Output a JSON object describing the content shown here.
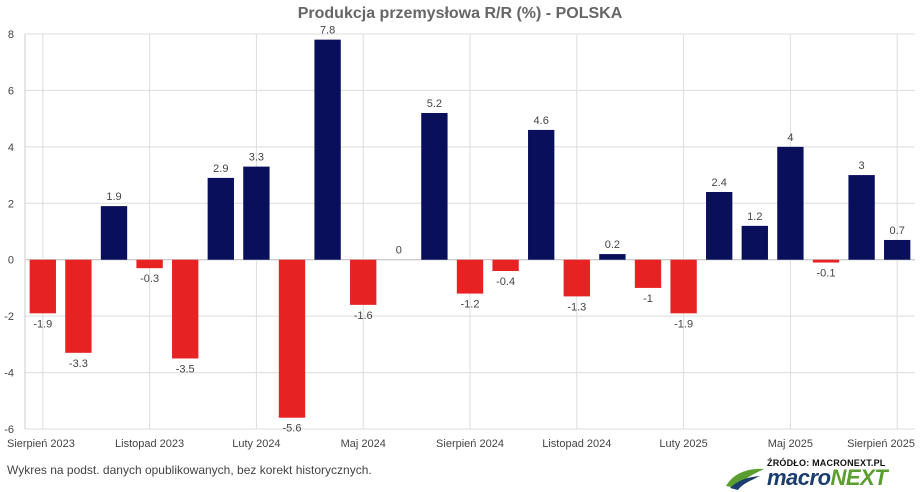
{
  "title": "Produkcja przemysłowa R/R (%) - POLSKA",
  "footnote": "Wykres na podst. danych opublikowanych, bez korekt historycznych.",
  "source": "ŹRÓDŁO: MACRONEXT.PL",
  "brand": {
    "part1": "macro",
    "part2": "NEXT"
  },
  "colors": {
    "positive": "#0a0f5c",
    "negative": "#e62222",
    "grid": "#dddddd",
    "logo_green": "#5a9e2f",
    "logo_blue": "#1a3d6d"
  },
  "chart_data": {
    "type": "bar",
    "title": "Produkcja przemysłowa R/R (%) - POLSKA",
    "xlabel": "",
    "ylabel": "",
    "ylim": [
      -6,
      8
    ],
    "yticks": [
      8,
      6,
      4,
      2,
      0,
      -2,
      -4,
      -6
    ],
    "categories": [
      "2023-08",
      "2023-09",
      "2023-10",
      "2023-11",
      "2023-12",
      "2024-01",
      "2024-02",
      "2024-03",
      "2024-04",
      "2024-05",
      "2024-06",
      "2024-07",
      "2024-08",
      "2024-09",
      "2024-10",
      "2024-11",
      "2024-12",
      "2025-01",
      "2025-02",
      "2025-03",
      "2025-04",
      "2025-05",
      "2025-06",
      "2025-07",
      "2025-08"
    ],
    "values": [
      -1.9,
      -3.3,
      1.9,
      -0.3,
      -3.5,
      2.9,
      3.3,
      -5.6,
      7.8,
      -1.6,
      0,
      5.2,
      -1.2,
      -0.4,
      4.6,
      -1.3,
      0.2,
      -1,
      -1.9,
      2.4,
      1.2,
      4,
      -0.1,
      3,
      0.7
    ],
    "value_labels": [
      "-1.9",
      "-3.3",
      "1.9",
      "-0.3",
      "-3.5",
      "2.9",
      "3.3",
      "-5.6",
      "7.8",
      "-1.6",
      "0",
      "5.2",
      "-1.2",
      "-0.4",
      "4.6",
      "-1.3",
      "0.2",
      "-1",
      "-1.9",
      "2.4",
      "1.2",
      "4",
      "-0.1",
      "3",
      "0.7"
    ],
    "x_tick_labels": [
      {
        "index": 0,
        "label": "Sierpień 2023"
      },
      {
        "index": 3,
        "label": "Listopad 2023"
      },
      {
        "index": 6,
        "label": "Luty 2024"
      },
      {
        "index": 9,
        "label": "Maj 2024"
      },
      {
        "index": 12,
        "label": "Sierpień 2024"
      },
      {
        "index": 15,
        "label": "Listopad 2024"
      },
      {
        "index": 18,
        "label": "Luty 2025"
      },
      {
        "index": 21,
        "label": "Maj 2025"
      },
      {
        "index": 24,
        "label": "Sierpień 2025"
      }
    ]
  }
}
